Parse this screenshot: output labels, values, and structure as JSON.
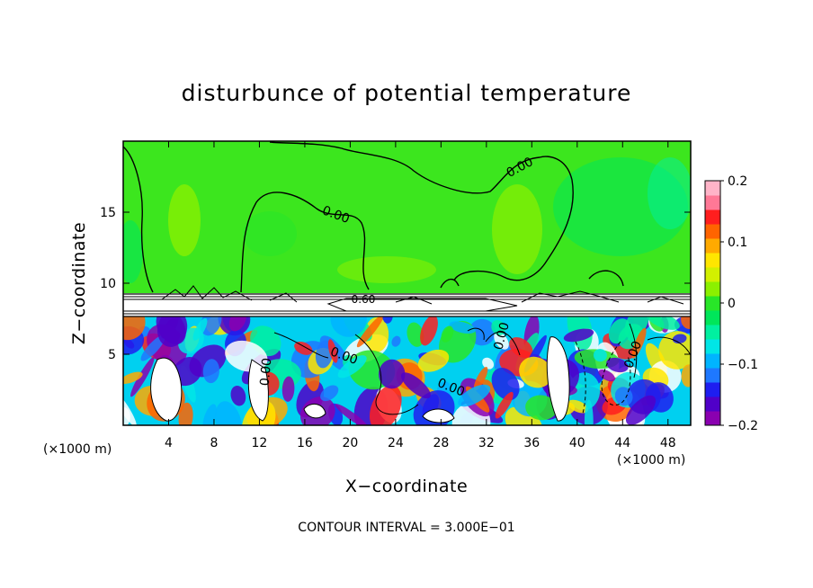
{
  "chart_data": {
    "type": "heatmap",
    "title": "disturbunce of potential temperature",
    "xlabel": "X−coordinate",
    "ylabel": "Z−coordinate",
    "x_unit_left": "(×1000 m)",
    "x_unit_right": "(×1000 m)",
    "xlim": [
      0,
      50
    ],
    "ylim": [
      0,
      20
    ],
    "x_ticks": [
      4,
      8,
      12,
      16,
      20,
      24,
      28,
      32,
      36,
      40,
      44,
      48
    ],
    "y_ticks": [
      5,
      10,
      15
    ],
    "colorbar": {
      "ticks": [
        "0.2",
        "0.1",
        "0",
        "−0.1",
        "−0.2"
      ],
      "tick_values": [
        0.2,
        0.1,
        0,
        -0.1,
        -0.2
      ],
      "range": [
        -0.2,
        0.2
      ],
      "colors": [
        "#8a00b0",
        "#5000c8",
        "#1e1ef0",
        "#1e78ff",
        "#00b4ff",
        "#00e6e6",
        "#00f0a0",
        "#00e65a",
        "#28e628",
        "#8cf000",
        "#d2f000",
        "#ffe600",
        "#ffaa00",
        "#ff6400",
        "#ff1e1e",
        "#ff7896",
        "#ffb4c8"
      ]
    },
    "contour_labels": [
      "0.00",
      "0.00",
      "0.00",
      "0.00",
      "0.00",
      "0.00",
      "0.00",
      "0.60"
    ],
    "footer": "CONTOUR INTERVAL = 3.000E−01"
  }
}
